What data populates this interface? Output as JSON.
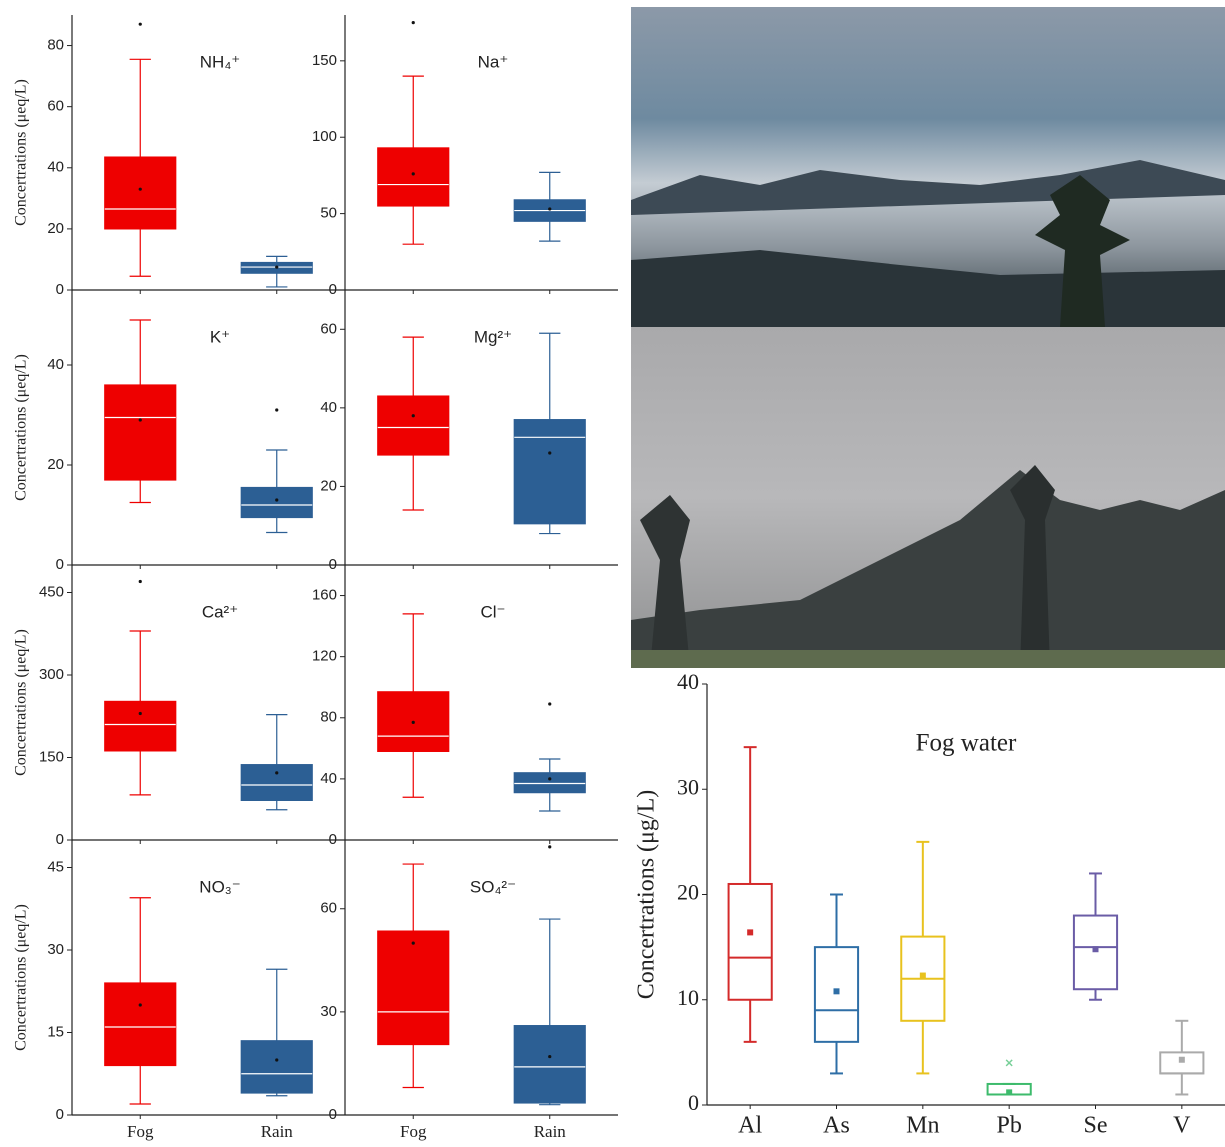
{
  "chart_data": [
    {
      "type": "box",
      "title": "NH₄⁺",
      "ylabel": "Concertrations (μeq/L)",
      "categories": [
        null,
        null
      ],
      "colors": [
        "#ee0000",
        "#2c5f94"
      ],
      "filled": true,
      "ylim": [
        0,
        90
      ],
      "yticks": [
        0,
        20,
        40,
        60,
        80
      ],
      "boxes": [
        {
          "min": 4.5,
          "q1": 20,
          "median": 26.5,
          "q3": 43.5,
          "max": 75.5,
          "mean": 33,
          "outliers": [
            87
          ]
        },
        {
          "min": 1,
          "q1": 5.5,
          "median": 7.5,
          "q3": 9,
          "max": 11,
          "mean": 7.5,
          "outliers": []
        }
      ]
    },
    {
      "type": "box",
      "title": "Na⁺",
      "categories": [
        null,
        null
      ],
      "colors": [
        "#ee0000",
        "#2c5f94"
      ],
      "filled": true,
      "ylim": [
        0,
        180
      ],
      "yticks": [
        0,
        50,
        100,
        150
      ],
      "boxes": [
        {
          "min": 30,
          "q1": 55,
          "median": 69,
          "q3": 93,
          "max": 140,
          "mean": 76,
          "outliers": [
            175
          ]
        },
        {
          "min": 32,
          "q1": 45,
          "median": 52,
          "q3": 59,
          "max": 77,
          "mean": 53,
          "outliers": []
        }
      ]
    },
    {
      "type": "box",
      "title": "K⁺",
      "ylabel": "Concertrations (μeq/L)",
      "categories": [
        null,
        null
      ],
      "colors": [
        "#ee0000",
        "#2c5f94"
      ],
      "filled": true,
      "ylim": [
        0,
        55
      ],
      "yticks": [
        0,
        20,
        40
      ],
      "boxes": [
        {
          "min": 12.5,
          "q1": 17,
          "median": 29.5,
          "q3": 36,
          "max": 49,
          "mean": 29,
          "outliers": []
        },
        {
          "min": 6.5,
          "q1": 9.5,
          "median": 12,
          "q3": 15.5,
          "max": 23,
          "mean": 13,
          "outliers": [
            31
          ]
        }
      ]
    },
    {
      "type": "box",
      "title": "Mg²⁺",
      "categories": [
        null,
        null
      ],
      "colors": [
        "#ee0000",
        "#2c5f94"
      ],
      "filled": true,
      "ylim": [
        0,
        70
      ],
      "yticks": [
        0,
        20,
        40,
        60
      ],
      "boxes": [
        {
          "min": 14,
          "q1": 28,
          "median": 35,
          "q3": 43,
          "max": 58,
          "mean": 38,
          "outliers": []
        },
        {
          "min": 8,
          "q1": 10.5,
          "median": 32.5,
          "q3": 37,
          "max": 59,
          "mean": 28.5,
          "outliers": []
        }
      ]
    },
    {
      "type": "box",
      "title": "Ca²⁺",
      "ylabel": "Concertrations (μeq/L)",
      "categories": [
        null,
        null
      ],
      "colors": [
        "#ee0000",
        "#2c5f94"
      ],
      "filled": true,
      "ylim": [
        0,
        500
      ],
      "yticks": [
        0,
        150,
        300,
        450
      ],
      "boxes": [
        {
          "min": 82,
          "q1": 162,
          "median": 210,
          "q3": 252,
          "max": 380,
          "mean": 230,
          "outliers": [
            470
          ]
        },
        {
          "min": 55,
          "q1": 72,
          "median": 100,
          "q3": 137,
          "max": 228,
          "mean": 122,
          "outliers": []
        }
      ]
    },
    {
      "type": "box",
      "title": "Cl⁻",
      "categories": [
        null,
        null
      ],
      "colors": [
        "#ee0000",
        "#2c5f94"
      ],
      "filled": true,
      "ylim": [
        0,
        180
      ],
      "yticks": [
        0,
        40,
        80,
        120,
        160
      ],
      "boxes": [
        {
          "min": 28,
          "q1": 58,
          "median": 68,
          "q3": 97,
          "max": 148,
          "mean": 77,
          "outliers": []
        },
        {
          "min": 19,
          "q1": 31,
          "median": 37,
          "q3": 44,
          "max": 53,
          "mean": 40,
          "outliers": [
            89
          ]
        }
      ]
    },
    {
      "type": "box",
      "title": "NO₃⁻",
      "ylabel": "Concertrations (μeq/L)",
      "categories": [
        "Fog",
        "Rain"
      ],
      "colors": [
        "#ee0000",
        "#2c5f94"
      ],
      "filled": true,
      "ylim": [
        0,
        50
      ],
      "yticks": [
        0,
        15,
        30,
        45
      ],
      "boxes": [
        {
          "min": 2,
          "q1": 9,
          "median": 16,
          "q3": 24,
          "max": 39.5,
          "mean": 20,
          "outliers": []
        },
        {
          "min": 3.5,
          "q1": 4,
          "median": 7.5,
          "q3": 13.5,
          "max": 26.5,
          "mean": 10,
          "outliers": []
        }
      ]
    },
    {
      "type": "box",
      "title": "SO₄²⁻",
      "categories": [
        "Fog",
        "Rain"
      ],
      "colors": [
        "#ee0000",
        "#2c5f94"
      ],
      "filled": true,
      "ylim": [
        0,
        80
      ],
      "yticks": [
        0,
        30,
        60
      ],
      "boxes": [
        {
          "min": 8,
          "q1": 20.5,
          "median": 30,
          "q3": 53.5,
          "max": 73,
          "mean": 50,
          "outliers": []
        },
        {
          "min": 3,
          "q1": 3.5,
          "median": 14,
          "q3": 26,
          "max": 57,
          "mean": 17,
          "outliers": [
            78
          ]
        }
      ]
    },
    {
      "type": "box",
      "title": "Fog water",
      "ylabel": "Concertrations (μg/L)",
      "categories": [
        "Al",
        "As",
        "Mn",
        "Pb",
        "Se",
        "V"
      ],
      "colors": [
        "#d42a2a",
        "#2e6ea6",
        "#e8c21e",
        "#3dbb6c",
        "#6a5ca6",
        "#aaaaaa"
      ],
      "filled": false,
      "ylim": [
        0,
        40
      ],
      "yticks": [
        0,
        10,
        20,
        30,
        40
      ],
      "boxes": [
        {
          "min": 6,
          "q1": 10,
          "median": 14,
          "q3": 21,
          "max": 34,
          "mean": 16.4,
          "outliers": []
        },
        {
          "min": 3,
          "q1": 6,
          "median": 9,
          "q3": 15,
          "max": 20,
          "mean": 10.8,
          "outliers": []
        },
        {
          "min": 3,
          "q1": 8,
          "median": 12,
          "q3": 16,
          "max": 25,
          "mean": 12.3,
          "outliers": []
        },
        {
          "min": 1,
          "q1": 1,
          "median": 1,
          "q3": 2,
          "max": 2,
          "mean": 1.2,
          "outliers": [
            4
          ]
        },
        {
          "min": 10,
          "q1": 11,
          "median": 15,
          "q3": 18,
          "max": 22,
          "mean": 14.8,
          "outliers": []
        },
        {
          "min": 1,
          "q1": 3,
          "median": 3,
          "q3": 5,
          "max": 8,
          "mean": 4.3,
          "outliers": []
        }
      ]
    }
  ]
}
